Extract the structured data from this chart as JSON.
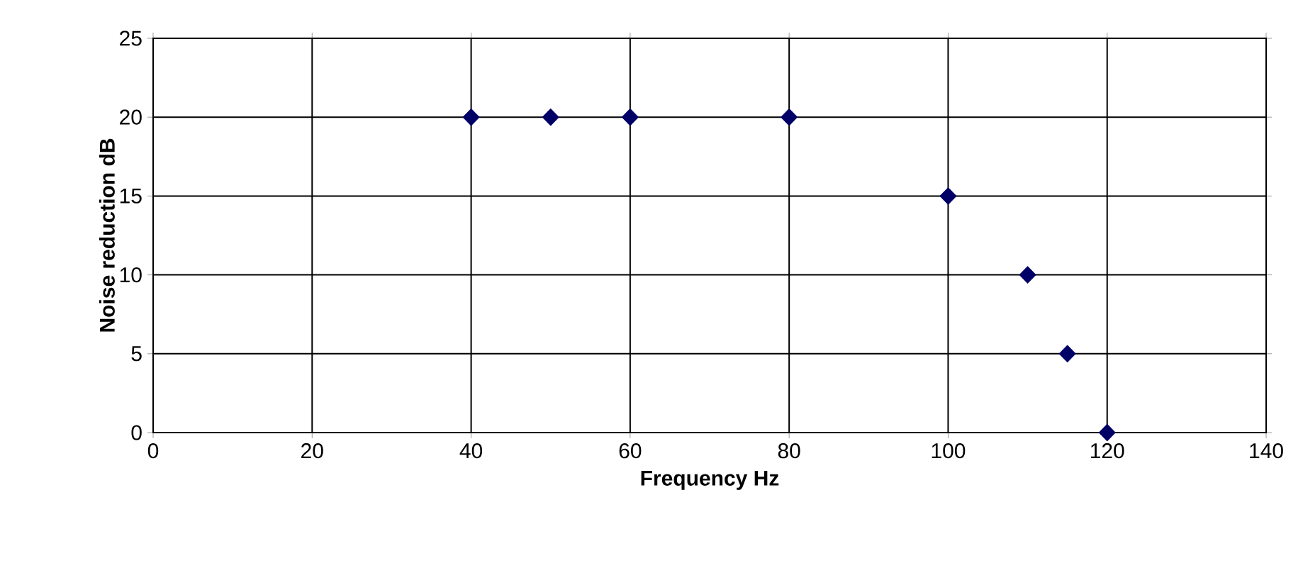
{
  "chart_data": {
    "type": "scatter",
    "xlabel": "Frequency Hz",
    "ylabel": "Noise reduction dB",
    "x": [
      40,
      50,
      60,
      80,
      100,
      110,
      115,
      120
    ],
    "series": [
      {
        "color": "#000066",
        "values": [
          20,
          20,
          20,
          20,
          15,
          10,
          5,
          0
        ]
      }
    ],
    "xlim": [
      0,
      140
    ],
    "xticks": [
      0,
      20,
      40,
      60,
      80,
      100,
      120,
      140
    ],
    "ylim": [
      0,
      25
    ],
    "yticks": [
      0,
      5,
      10,
      15,
      20,
      25
    ],
    "grid": true,
    "marker": "diamond"
  }
}
